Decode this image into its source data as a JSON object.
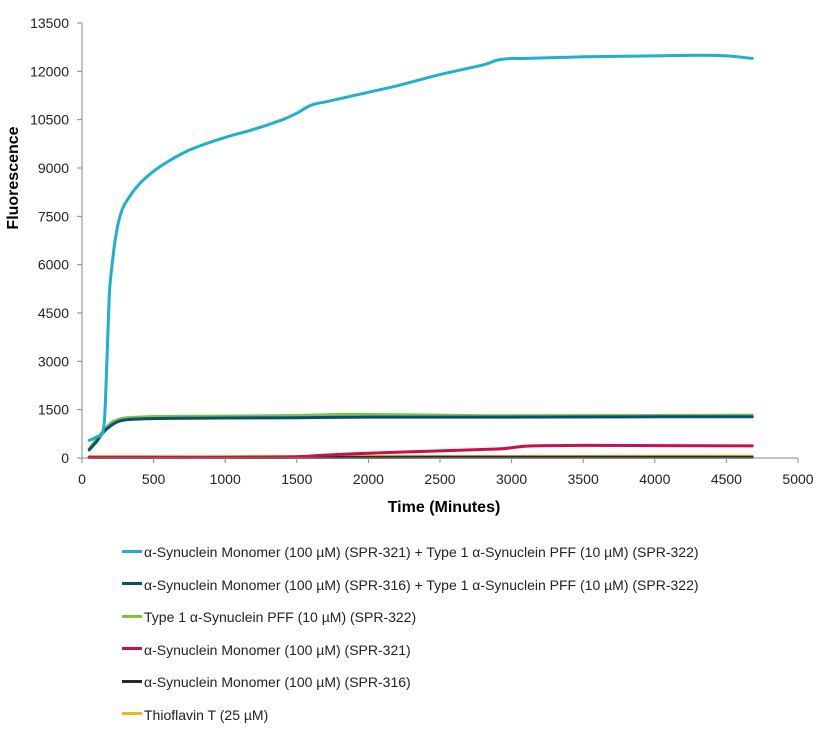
{
  "chart_data": {
    "type": "line",
    "title": "",
    "xlabel": "Time (Minutes)",
    "ylabel": "Fluorescence",
    "xlim": [
      0,
      5000
    ],
    "ylim": [
      0,
      13500
    ],
    "xticks": [
      0,
      500,
      1000,
      1500,
      2000,
      2500,
      3000,
      3500,
      4000,
      4500,
      5000
    ],
    "yticks": [
      0,
      1500,
      3000,
      4500,
      6000,
      7500,
      9000,
      10500,
      12000,
      13500
    ],
    "grid": false,
    "legend_position": "bottom",
    "series": [
      {
        "name": "α-Synuclein Monomer (100 µM) (SPR-321) + Type 1 α-Synuclein PFF (10 µM) (SPR-322)",
        "color": "#1fb0cd",
        "x": [
          50,
          100,
          150,
          170,
          190,
          210,
          240,
          280,
          330,
          400,
          500,
          600,
          700,
          800,
          1000,
          1200,
          1400,
          1500,
          1600,
          1700,
          1800,
          2000,
          2200,
          2500,
          2800,
          2900,
          3000,
          3100,
          3500,
          4000,
          4300,
          4500,
          4680
        ],
        "y": [
          550,
          650,
          900,
          2500,
          5000,
          6000,
          7000,
          7700,
          8100,
          8500,
          8900,
          9200,
          9450,
          9650,
          9950,
          10200,
          10500,
          10700,
          10950,
          11050,
          11150,
          11350,
          11550,
          11900,
          12200,
          12350,
          12400,
          12400,
          12450,
          12480,
          12500,
          12480,
          12400
        ]
      },
      {
        "name": "α-Synuclein Monomer (100 µM) (SPR-316) + Type 1 α-Synuclein PFF (10 µM) (SPR-322)",
        "color": "#0b4e75",
        "x": [
          50,
          100,
          150,
          200,
          250,
          300,
          400,
          600,
          1000,
          1500,
          2000,
          3000,
          4000,
          4680
        ],
        "y": [
          250,
          500,
          800,
          1000,
          1130,
          1180,
          1210,
          1230,
          1240,
          1250,
          1270,
          1270,
          1280,
          1280
        ]
      },
      {
        "name": "Type 1 α-Synuclein PFF (10 µM) (SPR-322)",
        "color": "#7dc242",
        "x": [
          50,
          100,
          150,
          200,
          250,
          300,
          400,
          600,
          1000,
          1500,
          1800,
          2000,
          2500,
          3000,
          4000,
          4680
        ],
        "y": [
          280,
          580,
          850,
          1080,
          1190,
          1240,
          1270,
          1290,
          1300,
          1320,
          1350,
          1350,
          1330,
          1310,
          1320,
          1330
        ]
      },
      {
        "name": "α-Synuclein Monomer (100 µM) (SPR-321)",
        "color": "#c8104a",
        "x": [
          50,
          500,
          1000,
          1500,
          1700,
          2000,
          2500,
          2900,
          3000,
          3100,
          3200,
          3500,
          4000,
          4680
        ],
        "y": [
          20,
          20,
          20,
          40,
          90,
          150,
          220,
          280,
          320,
          370,
          380,
          390,
          385,
          375
        ]
      },
      {
        "name": "α-Synuclein Monomer (100 µM) (SPR-316)",
        "color": "#2a2a2a",
        "x": [
          50,
          1000,
          2000,
          3000,
          4000,
          4680
        ],
        "y": [
          15,
          15,
          20,
          25,
          25,
          25
        ]
      },
      {
        "name": "Thioflavin T (25 µM)",
        "color": "#f2b51d",
        "x": [
          50,
          1000,
          2000,
          3000,
          4000,
          4680
        ],
        "y": [
          45,
          45,
          50,
          50,
          55,
          55
        ]
      }
    ]
  }
}
